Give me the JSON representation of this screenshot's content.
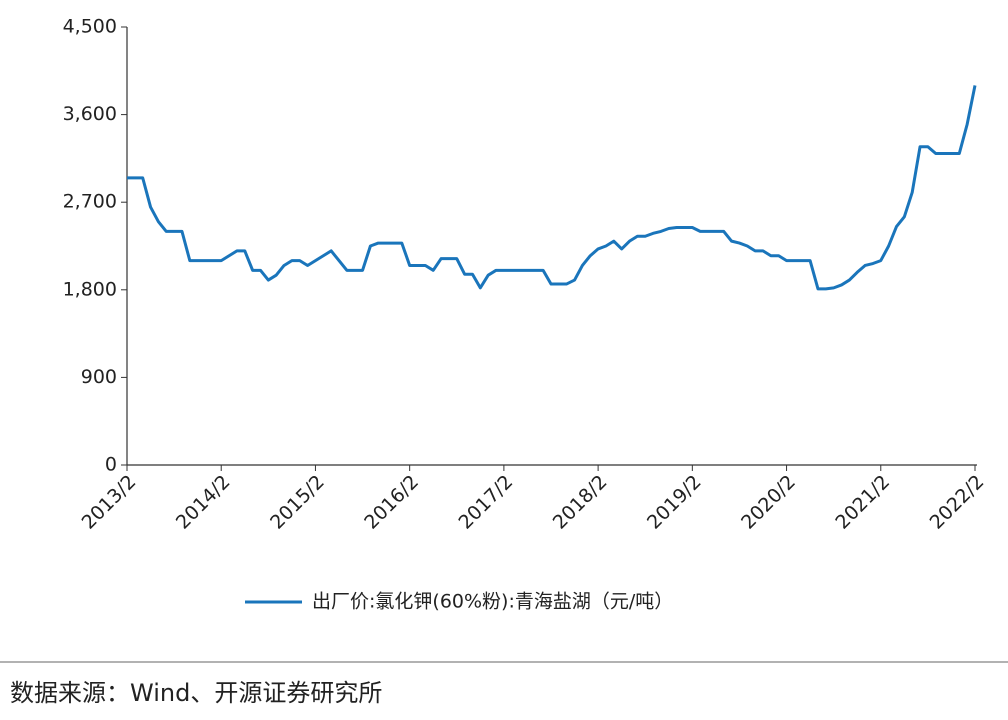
{
  "chart_data": {
    "type": "line",
    "x": [
      "2013/2",
      "2013/3",
      "2013/4",
      "2013/5",
      "2013/6",
      "2013/7",
      "2013/8",
      "2013/9",
      "2013/10",
      "2013/11",
      "2013/12",
      "2014/1",
      "2014/2",
      "2014/3",
      "2014/4",
      "2014/5",
      "2014/6",
      "2014/7",
      "2014/8",
      "2014/9",
      "2014/10",
      "2014/11",
      "2014/12",
      "2015/1",
      "2015/2",
      "2015/3",
      "2015/4",
      "2015/5",
      "2015/6",
      "2015/7",
      "2015/8",
      "2015/9",
      "2015/10",
      "2015/11",
      "2015/12",
      "2016/1",
      "2016/2",
      "2016/3",
      "2016/4",
      "2016/5",
      "2016/6",
      "2016/7",
      "2016/8",
      "2016/9",
      "2016/10",
      "2016/11",
      "2016/12",
      "2017/1",
      "2017/2",
      "2017/3",
      "2017/4",
      "2017/5",
      "2017/6",
      "2017/7",
      "2017/8",
      "2017/9",
      "2017/10",
      "2017/11",
      "2017/12",
      "2018/1",
      "2018/2",
      "2018/3",
      "2018/4",
      "2018/5",
      "2018/6",
      "2018/7",
      "2018/8",
      "2018/9",
      "2018/10",
      "2018/11",
      "2018/12",
      "2019/1",
      "2019/2",
      "2019/3",
      "2019/4",
      "2019/5",
      "2019/6",
      "2019/7",
      "2019/8",
      "2019/9",
      "2019/10",
      "2019/11",
      "2019/12",
      "2020/1",
      "2020/2",
      "2020/3",
      "2020/4",
      "2020/5",
      "2020/6",
      "2020/7",
      "2020/8",
      "2020/9",
      "2020/10",
      "2020/11",
      "2020/12",
      "2021/1",
      "2021/2",
      "2021/3",
      "2021/4",
      "2021/5",
      "2021/6",
      "2021/7",
      "2021/8",
      "2021/9",
      "2021/10",
      "2021/11",
      "2021/12",
      "2022/1",
      "2022/2"
    ],
    "series": [
      {
        "name": "出厂价:氯化钾(60%粉):青海盐湖（元/吨）",
        "color": "#1a75bb",
        "values": [
          2950,
          2950,
          2950,
          2650,
          2500,
          2400,
          2400,
          2400,
          2100,
          2100,
          2100,
          2100,
          2100,
          2150,
          2200,
          2200,
          2000,
          2000,
          1900,
          1950,
          2050,
          2100,
          2100,
          2050,
          2100,
          2150,
          2200,
          2100,
          2000,
          2000,
          2000,
          2250,
          2280,
          2280,
          2280,
          2280,
          2050,
          2050,
          2050,
          2000,
          2120,
          2120,
          2120,
          1960,
          1960,
          1820,
          1950,
          2000,
          2000,
          2000,
          2000,
          2000,
          2000,
          2000,
          1860,
          1860,
          1860,
          1900,
          2050,
          2150,
          2220,
          2250,
          2300,
          2220,
          2300,
          2350,
          2350,
          2380,
          2400,
          2430,
          2440,
          2440,
          2440,
          2400,
          2400,
          2400,
          2400,
          2300,
          2280,
          2250,
          2200,
          2200,
          2150,
          2150,
          2100,
          2100,
          2100,
          2100,
          1810,
          1810,
          1820,
          1850,
          1900,
          1980,
          2050,
          2070,
          2100,
          2250,
          2450,
          2550,
          2800,
          3270,
          3270,
          3200,
          3200,
          3200,
          3200,
          3500,
          3900
        ]
      }
    ],
    "xticks": [
      "2013/2",
      "2014/2",
      "2015/2",
      "2016/2",
      "2017/2",
      "2018/2",
      "2019/2",
      "2020/2",
      "2021/2",
      "2022/2"
    ],
    "ylim": [
      0,
      4500
    ],
    "yticks": [
      0,
      900,
      {
        "value": 1800,
        "label": "1,800"
      },
      {
        "value": 2700,
        "label": "2,700"
      },
      {
        "value": 3600,
        "label": "3,600"
      },
      {
        "value": 4500,
        "label": "4,500"
      }
    ],
    "source": "数据来源：Wind、开源证券研究所"
  }
}
